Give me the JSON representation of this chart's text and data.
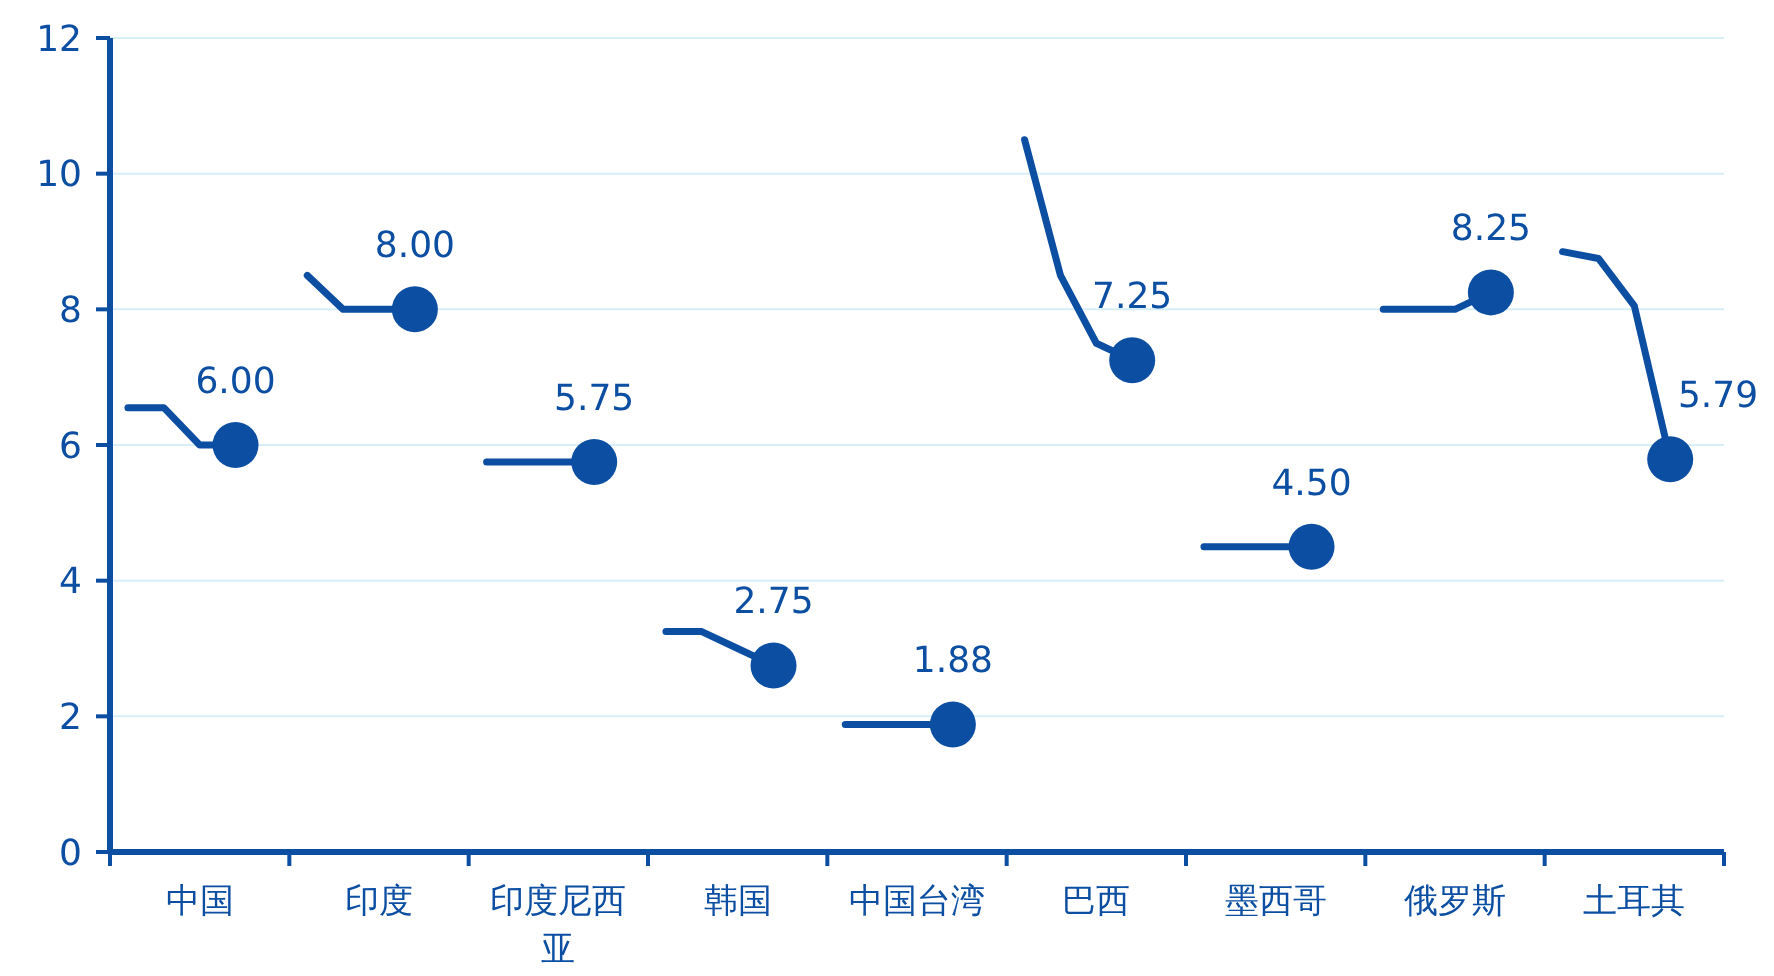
{
  "chart_data": {
    "type": "line",
    "ylim": [
      0,
      12
    ],
    "yticks": [
      0,
      2,
      4,
      6,
      8,
      10,
      12
    ],
    "grid": "y",
    "categories": [
      null,
      null,
      "中国",
      null,
      null,
      null,
      null,
      "印度",
      null,
      null,
      null,
      null,
      "印度尼西亚",
      null,
      null,
      null,
      null,
      "韩国",
      null,
      null,
      null,
      null,
      "中国台湾",
      null,
      null,
      null,
      null,
      "巴西",
      null,
      null,
      null,
      null,
      "墨西哥",
      null,
      null,
      null,
      null,
      "俄罗斯",
      null,
      null,
      null,
      null,
      "土耳其",
      null,
      null
    ],
    "series": [
      {
        "marker": "none",
        "color": "#0b4ea2",
        "values": [
          6.55,
          6.55,
          6.0,
          6.0,
          null,
          8.5,
          8.0,
          8.0,
          8.0,
          null,
          5.75,
          5.75,
          5.75,
          5.75,
          null,
          3.25,
          3.25,
          3.0,
          2.75,
          null,
          1.88,
          1.88,
          1.88,
          1.88,
          null,
          10.5,
          8.5,
          7.5,
          7.25,
          null,
          4.5,
          4.5,
          4.5,
          4.5,
          null,
          8.0,
          8.0,
          8.0,
          8.25,
          null,
          8.85,
          8.75,
          8.05,
          5.79,
          null
        ]
      },
      {
        "type": "scatter",
        "marker": "circle",
        "color": "#0b4ea2",
        "values": [
          null,
          null,
          null,
          6.0,
          null,
          null,
          null,
          null,
          8.0,
          null,
          null,
          null,
          null,
          5.75,
          null,
          null,
          null,
          null,
          2.75,
          null,
          null,
          null,
          null,
          1.88,
          null,
          null,
          null,
          null,
          7.25,
          null,
          null,
          null,
          null,
          4.5,
          null,
          null,
          null,
          null,
          8.25,
          null,
          null,
          null,
          null,
          5.79,
          null
        ],
        "value_labels": [
          null,
          null,
          null,
          "6.00",
          null,
          null,
          null,
          null,
          "8.00",
          null,
          null,
          null,
          null,
          "5.75",
          null,
          null,
          null,
          null,
          "2.75",
          null,
          null,
          null,
          null,
          "1.88",
          null,
          null,
          null,
          null,
          "7.25",
          null,
          null,
          null,
          null,
          "4.50",
          null,
          null,
          null,
          null,
          "8.25",
          null,
          null,
          null,
          null,
          "5.79",
          null
        ]
      }
    ]
  }
}
